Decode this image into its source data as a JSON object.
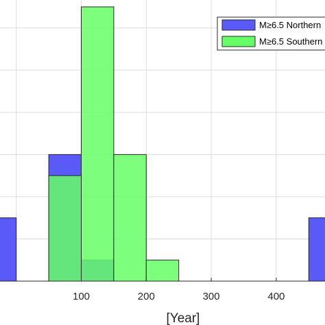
{
  "chart_data": {
    "type": "bar",
    "title": "",
    "xlabel": "[Year]",
    "ylabel": "",
    "xlim": [
      -25,
      475
    ],
    "ylim": [
      0,
      6.5
    ],
    "bin_width": 50,
    "grid": true,
    "legend_placement": "top-right",
    "x_ticks": [
      "100",
      "200",
      "300",
      "400"
    ],
    "series": [
      {
        "name": "M≥6.5 Northern",
        "color": "#5a5af8",
        "bin_starts": [
          -50,
          50,
          100,
          450
        ],
        "values": [
          1.5,
          3,
          0.5,
          1.5
        ]
      },
      {
        "name": "M≥6.5 Southern",
        "color": "#66ff66",
        "bin_starts": [
          50,
          100,
          150,
          200
        ],
        "values": [
          2.5,
          6.5,
          3,
          0.5
        ]
      }
    ]
  }
}
